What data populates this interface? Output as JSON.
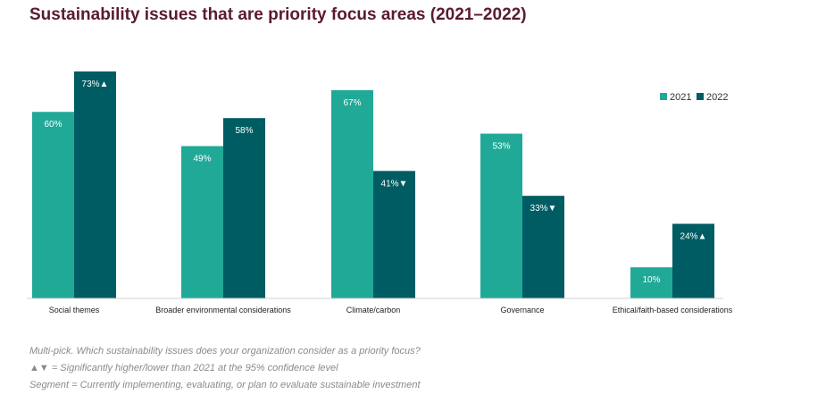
{
  "title": "Sustainability issues that are priority focus areas (2021–2022)",
  "colors": {
    "y2021": "#21a997",
    "y2022": "#005c63",
    "title": "#5b1a33"
  },
  "chart_data": {
    "type": "bar",
    "title": "Sustainability issues that are priority focus areas (2021–2022)",
    "categories": [
      "Social themes",
      "Broader environmental considerations",
      "Climate/carbon",
      "Governance",
      "Ethical/faith-based considerations"
    ],
    "series": [
      {
        "name": "2021",
        "values": [
          60,
          49,
          67,
          53,
          10
        ],
        "labels": [
          "60%",
          "49%",
          "67%",
          "53%",
          "10%"
        ]
      },
      {
        "name": "2022",
        "values": [
          73,
          58,
          41,
          33,
          24
        ],
        "labels": [
          "73%▲",
          "58%",
          "41%▼",
          "33%▼",
          "24%▲"
        ]
      }
    ],
    "ylim": [
      0,
      73
    ],
    "grid": false,
    "legend_position": "top-right"
  },
  "footnotes": [
    "Multi-pick. Which sustainability issues does your organization consider as a priority focus?",
    "▲▼ = Significantly higher/lower than 2021 at the 95% confidence level",
    "Segment = Currently implementing, evaluating, or plan to evaluate sustainable investment"
  ]
}
